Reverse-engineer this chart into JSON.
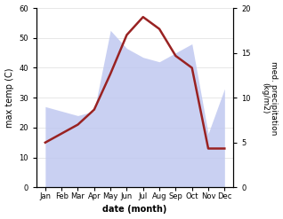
{
  "months": [
    "Jan",
    "Feb",
    "Mar",
    "Apr",
    "May",
    "Jun",
    "Jul",
    "Aug",
    "Sep",
    "Oct",
    "Nov",
    "Dec"
  ],
  "temperature": [
    15,
    18,
    21,
    26,
    38,
    51,
    57,
    53,
    44,
    40,
    13,
    13
  ],
  "precipitation": [
    9.0,
    8.5,
    8.0,
    8.5,
    17.5,
    15.5,
    14.5,
    14.0,
    15.0,
    16.0,
    6.0,
    11.0
  ],
  "temp_color": "#992222",
  "precip_fill_color": "#c0c8f0",
  "left_ylabel": "max temp (C)",
  "right_ylabel": "med. precipitation\n(kg/m2)",
  "xlabel": "date (month)",
  "ylim_left": [
    0,
    60
  ],
  "ylim_right": [
    0,
    20
  ],
  "yticks_left": [
    0,
    10,
    20,
    30,
    40,
    50,
    60
  ],
  "yticks_right": [
    0,
    5,
    10,
    15,
    20
  ],
  "background_color": "#ffffff",
  "temp_linewidth": 1.8,
  "grid_color": "#dddddd"
}
